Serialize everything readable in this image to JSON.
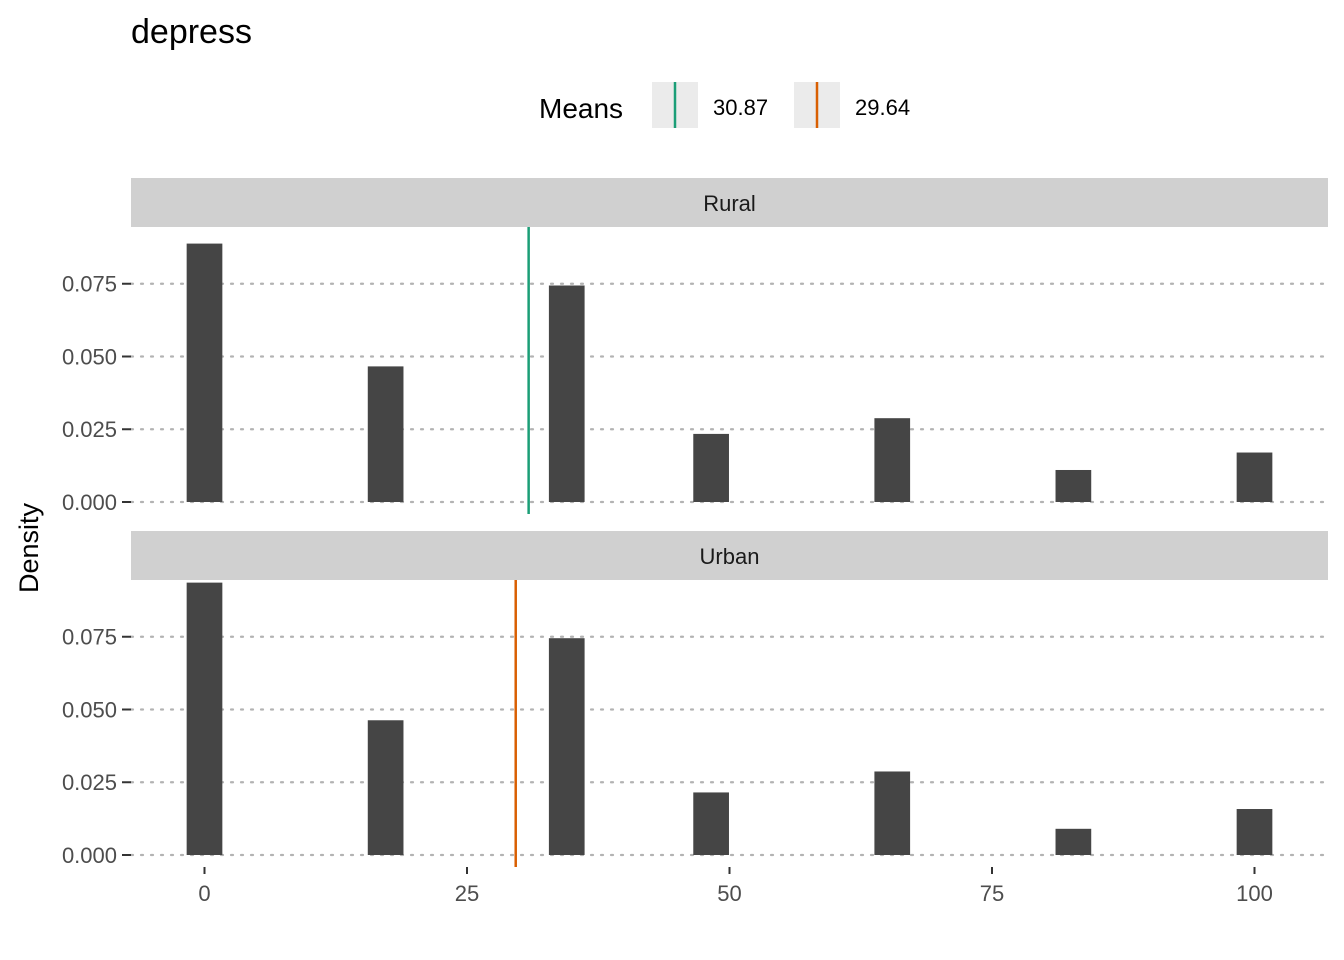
{
  "chart_data": {
    "type": "bar",
    "title": "depress",
    "xlabel": "",
    "ylabel": "Density",
    "xlim": [
      -7,
      107
    ],
    "ylim": [
      0,
      0.0945
    ],
    "x_ticks": [
      0,
      25,
      50,
      75,
      100
    ],
    "y_ticks": [
      0,
      0.025,
      0.05,
      0.075
    ],
    "y_tick_labels": [
      "0.000",
      "0.025",
      "0.050",
      "0.075"
    ],
    "bar_width": 3.4,
    "grid": "horizontal dotted",
    "legend": {
      "title": "Means",
      "placement": "top",
      "entries": [
        {
          "label": "30.87",
          "color": "#1b9e77"
        },
        {
          "label": "29.64",
          "color": "#d95f02"
        }
      ]
    },
    "bar_color": "#454545",
    "panels": [
      {
        "name": "Rural",
        "mean": 30.87,
        "mean_color": "#1b9e77",
        "x": [
          0,
          17.25,
          34.5,
          48.25,
          65.5,
          82.75,
          100
        ],
        "values": [
          0.0888,
          0.0466,
          0.0744,
          0.0234,
          0.0288,
          0.011,
          0.017
        ]
      },
      {
        "name": "Urban",
        "mean": 29.64,
        "mean_color": "#d95f02",
        "x": [
          0,
          17.25,
          34.5,
          48.25,
          65.5,
          82.75,
          100
        ],
        "values": [
          0.0936,
          0.0463,
          0.0745,
          0.0215,
          0.0287,
          0.009,
          0.0158
        ]
      }
    ]
  }
}
